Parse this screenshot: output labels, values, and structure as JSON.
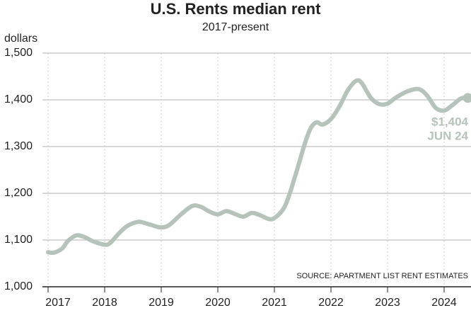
{
  "chart_data": {
    "type": "line",
    "title": "U.S. Rents median rent",
    "subtitle": "2017-present",
    "y_label": "dollars",
    "source": "SOURCE: APARTMENT LIST RENT ESTIMATES",
    "annotations": [
      "$1,404",
      "JUN 24"
    ],
    "x": [
      2017.0,
      2017.1,
      2017.25,
      2017.35,
      2017.5,
      2017.65,
      2017.8,
      2018.0,
      2018.1,
      2018.25,
      2018.4,
      2018.6,
      2018.8,
      2019.0,
      2019.15,
      2019.35,
      2019.55,
      2019.7,
      2019.85,
      2020.0,
      2020.15,
      2020.3,
      2020.45,
      2020.6,
      2020.75,
      2020.9,
      2021.0,
      2021.15,
      2021.25,
      2021.4,
      2021.55,
      2021.65,
      2021.75,
      2021.85,
      2022.0,
      2022.15,
      2022.3,
      2022.45,
      2022.55,
      2022.7,
      2022.85,
      2023.0,
      2023.15,
      2023.35,
      2023.55,
      2023.7,
      2023.85,
      2024.0,
      2024.15,
      2024.3,
      2024.42
    ],
    "series": [
      {
        "name": "Median rent",
        "color": "#b5c3ba",
        "values": [
          1074,
          1073,
          1082,
          1098,
          1110,
          1106,
          1097,
          1090,
          1094,
          1114,
          1130,
          1139,
          1133,
          1127,
          1133,
          1155,
          1173,
          1171,
          1161,
          1155,
          1162,
          1156,
          1150,
          1158,
          1153,
          1145,
          1147,
          1165,
          1192,
          1250,
          1311,
          1341,
          1352,
          1347,
          1359,
          1386,
          1421,
          1441,
          1435,
          1405,
          1391,
          1392,
          1405,
          1418,
          1423,
          1409,
          1383,
          1377,
          1389,
          1403,
          1404
        ]
      }
    ],
    "xlim": [
      2017,
      2024.45
    ],
    "xticks": [
      2017,
      2018,
      2019,
      2020,
      2021,
      2022,
      2023,
      2024
    ],
    "ylim": [
      1000,
      1500
    ],
    "yticks": [
      {
        "value": 1000,
        "label": "1,000"
      },
      {
        "value": 1100,
        "label": "1,100"
      },
      {
        "value": 1200,
        "label": "1,200"
      },
      {
        "value": 1300,
        "label": "1,300"
      },
      {
        "value": 1400,
        "label": "1,400"
      },
      {
        "value": 1500,
        "label": "1,500"
      }
    ],
    "grid": true
  }
}
